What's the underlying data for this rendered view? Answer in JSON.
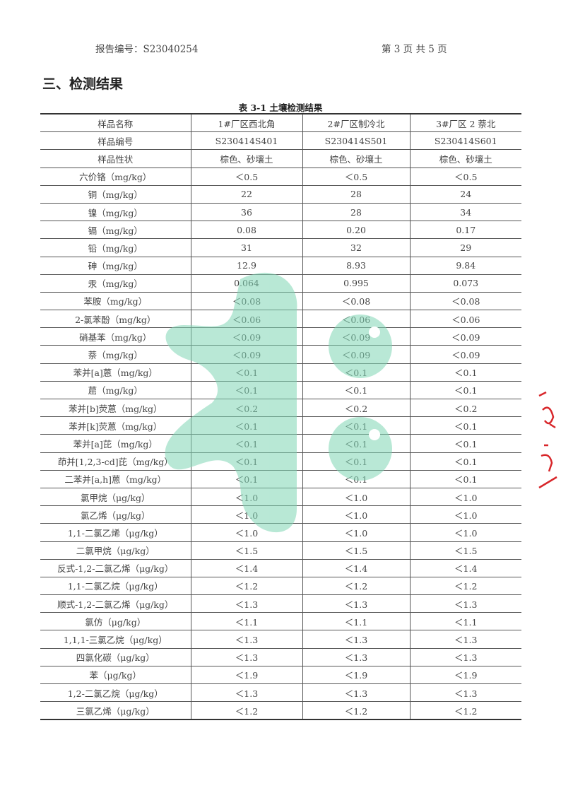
{
  "header": {
    "report_no": "报告编号：S23040254",
    "page": "第 3 页 共 5 页"
  },
  "section_title": "三、检测结果",
  "table": {
    "caption": "表 3-1 土壤检测结果",
    "rows": [
      [
        "样品名称",
        "1#厂区西北角",
        "2#厂区制冷北",
        "3#厂区 2 萘北"
      ],
      [
        "样品编号",
        "S230414S401",
        "S230414S501",
        "S230414S601"
      ],
      [
        "样品性状",
        "棕色、砂壤土",
        "棕色、砂壤土",
        "棕色、砂壤土"
      ],
      [
        "六价铬（mg/kg）",
        "＜0.5",
        "＜0.5",
        "＜0.5"
      ],
      [
        "铜（mg/kg）",
        "22",
        "28",
        "24"
      ],
      [
        "镍（mg/kg）",
        "36",
        "28",
        "34"
      ],
      [
        "镉（mg/kg）",
        "0.08",
        "0.20",
        "0.17"
      ],
      [
        "铅（mg/kg）",
        "31",
        "32",
        "29"
      ],
      [
        "砷（mg/kg）",
        "12.9",
        "8.93",
        "9.84"
      ],
      [
        "汞（mg/kg）",
        "0.064",
        "0.995",
        "0.073"
      ],
      [
        "苯胺（mg/kg）",
        "＜0.08",
        "＜0.08",
        "＜0.08"
      ],
      [
        "2-氯苯酚（mg/kg）",
        "＜0.06",
        "＜0.06",
        "＜0.06"
      ],
      [
        "硝基苯（mg/kg）",
        "＜0.09",
        "＜0.09",
        "＜0.09"
      ],
      [
        "萘（mg/kg）",
        "＜0.09",
        "＜0.09",
        "＜0.09"
      ],
      [
        "苯并[a]蒽（mg/kg）",
        "＜0.1",
        "＜0.1",
        "＜0.1"
      ],
      [
        "䓛（mg/kg）",
        "＜0.1",
        "＜0.1",
        "＜0.1"
      ],
      [
        "苯并[b]荧蒽（mg/kg）",
        "＜0.2",
        "＜0.2",
        "＜0.2"
      ],
      [
        "苯并[k]荧蒽（mg/kg）",
        "＜0.1",
        "＜0.1",
        "＜0.1"
      ],
      [
        "苯并[a]芘（mg/kg）",
        "＜0.1",
        "＜0.1",
        "＜0.1"
      ],
      [
        "茚并[1,2,3-cd]芘（mg/kg）",
        "＜0.1",
        "＜0.1",
        "＜0.1"
      ],
      [
        "二苯并[a,h]蒽（mg/kg）",
        "＜0.1",
        "＜0.1",
        "＜0.1"
      ],
      [
        "氯甲烷（μg/kg）",
        "＜1.0",
        "＜1.0",
        "＜1.0"
      ],
      [
        "氯乙烯（μg/kg）",
        "＜1.0",
        "＜1.0",
        "＜1.0"
      ],
      [
        "1,1-二氯乙烯（μg/kg）",
        "＜1.0",
        "＜1.0",
        "＜1.0"
      ],
      [
        "二氯甲烷（μg/kg）",
        "＜1.5",
        "＜1.5",
        "＜1.5"
      ],
      [
        "反式-1,2-二氯乙烯（μg/kg）",
        "＜1.4",
        "＜1.4",
        "＜1.4"
      ],
      [
        "1,1-二氯乙烷（μg/kg）",
        "＜1.2",
        "＜1.2",
        "＜1.2"
      ],
      [
        "顺式-1,2-二氯乙烯（μg/kg）",
        "＜1.3",
        "＜1.3",
        "＜1.3"
      ],
      [
        "氯仿（μg/kg）",
        "＜1.1",
        "＜1.1",
        "＜1.1"
      ],
      [
        "1,1,1-三氯乙烷（μg/kg）",
        "＜1.3",
        "＜1.3",
        "＜1.3"
      ],
      [
        "四氯化碳（μg/kg）",
        "＜1.3",
        "＜1.3",
        "＜1.3"
      ],
      [
        "苯（μg/kg）",
        "＜1.9",
        "＜1.9",
        "＜1.9"
      ],
      [
        "1,2-二氯乙烷（μg/kg）",
        "＜1.3",
        "＜1.3",
        "＜1.3"
      ],
      [
        "三氯乙烯（μg/kg）",
        "＜1.2",
        "＜1.2",
        "＜1.2"
      ]
    ]
  },
  "watermark_color": "#7fd6b4",
  "stamp_color": "#d8262a"
}
